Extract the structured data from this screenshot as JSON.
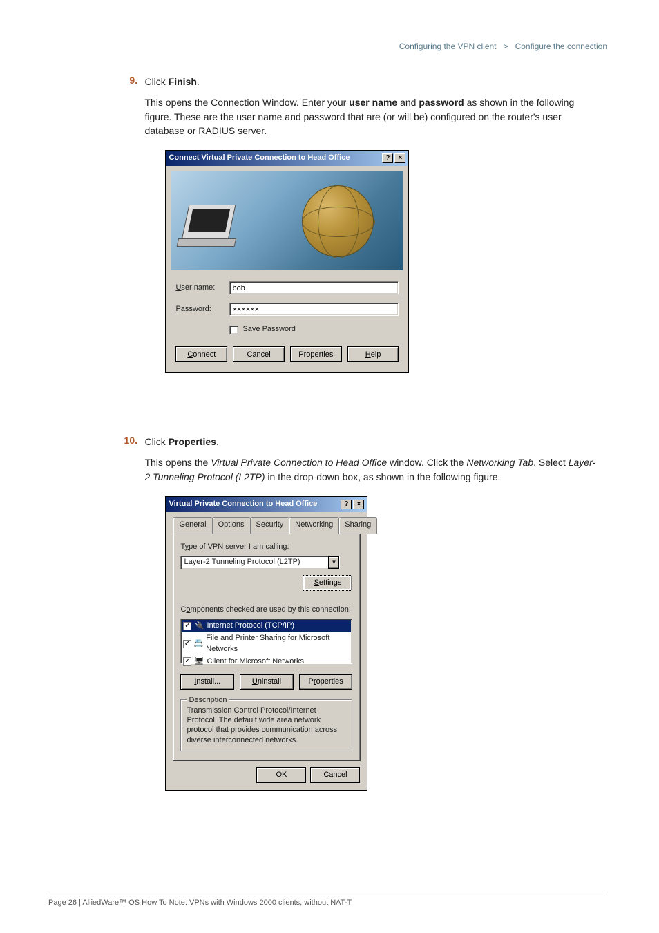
{
  "header": {
    "breadcrumb_left": "Configuring the VPN client",
    "breadcrumb_sep": ">",
    "breadcrumb_right": "Configure the connection"
  },
  "step9": {
    "num": "9.",
    "instruction_prefix": "Click ",
    "instruction_bold": "Finish",
    "instruction_suffix": ".",
    "para_pre": "This opens the Connection Window. Enter your ",
    "para_b1": "user name",
    "para_mid": " and ",
    "para_b2": "password",
    "para_post": " as shown in the following figure.  These are the user name and password that are (or will be) configured on the router's user database or RADIUS server."
  },
  "dialog1": {
    "title": "Connect Virtual Private Connection to Head Office",
    "username_label": "User name:",
    "username_value": "bob",
    "password_label": "Password:",
    "password_value": "××××××",
    "save_password": "Save Password",
    "btn_connect": "Connect",
    "btn_cancel": "Cancel",
    "btn_properties": "Properties",
    "btn_help": "Help"
  },
  "step10": {
    "num": "10.",
    "instruction_prefix": "Click ",
    "instruction_bold": "Properties",
    "instruction_suffix": ".",
    "para_pre": "This opens the ",
    "para_i1": "Virtual Private Connection to Head Office",
    "para_mid1": " window. Click the ",
    "para_i2": "Networking Tab",
    "para_mid2": ". Select ",
    "para_i3": "Layer-2 Tunneling Protocol (L2TP)",
    "para_post": " in the drop-down box, as shown in the following figure."
  },
  "dialog2": {
    "title": "Virtual Private Connection to Head Office",
    "tabs": [
      "General",
      "Options",
      "Security",
      "Networking",
      "Sharing"
    ],
    "active_tab": 3,
    "type_label": "Type of VPN server I am calling:",
    "type_value": "Layer-2 Tunneling Protocol (L2TP)",
    "settings_btn": "Settings",
    "components_label": "Components checked are used by this connection:",
    "items": [
      {
        "checked": true,
        "label": "Internet Protocol (TCP/IP)",
        "selected": true,
        "icon": "🔌"
      },
      {
        "checked": true,
        "label": "File and Printer Sharing for Microsoft Networks",
        "selected": false,
        "icon": "📇"
      },
      {
        "checked": true,
        "label": "Client for Microsoft Networks",
        "selected": false,
        "icon": "🖥"
      }
    ],
    "btn_install": "Install...",
    "btn_uninstall": "Uninstall",
    "btn_properties": "Properties",
    "desc_title": "Description",
    "desc_text": "Transmission Control Protocol/Internet Protocol. The default wide area network protocol that provides communication across diverse interconnected networks.",
    "btn_ok": "OK",
    "btn_cancel": "Cancel"
  },
  "footer": {
    "text": "Page 26 | AlliedWare™ OS How To Note: VPNs with Windows 2000 clients, without NAT-T"
  }
}
